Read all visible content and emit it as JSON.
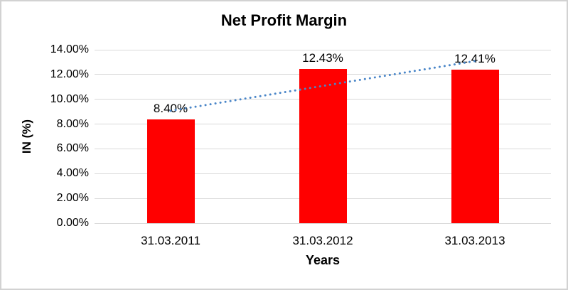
{
  "chart_data": {
    "type": "bar",
    "title": "Net Profit Margin",
    "xlabel": "Years",
    "ylabel": "IN (%)",
    "categories": [
      "31.03.2011",
      "31.03.2012",
      "31.03.2013"
    ],
    "values": [
      8.4,
      12.43,
      12.41
    ],
    "data_labels": [
      "8.40%",
      "12.43%",
      "12.41%"
    ],
    "ylim": [
      0,
      14
    ],
    "ytick_step": 2,
    "ytick_labels": [
      "0.00%",
      "2.00%",
      "4.00%",
      "6.00%",
      "8.00%",
      "10.00%",
      "12.00%",
      "14.00%"
    ],
    "grid": true,
    "legend": "none",
    "bar_color": "#FF0000",
    "gridline_color": "#D9D9D9",
    "text_color": "#000000",
    "trendline": {
      "type": "linear",
      "style": "dotted",
      "color": "#4A86C8"
    }
  }
}
